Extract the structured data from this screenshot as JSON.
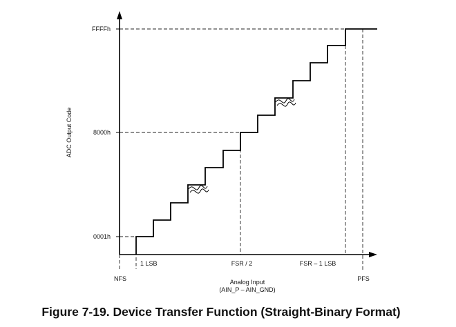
{
  "top_cut_text": "",
  "y_axis": {
    "title": "ADC Output Code",
    "ticks": [
      "FFFFh",
      "8000h",
      "0001h"
    ]
  },
  "x_axis": {
    "title_line1": "Analog Input",
    "title_line2": "(AIN_P – AIN_GND)",
    "labels": [
      "1 LSB",
      "FSR / 2",
      "FSR – 1 LSB"
    ],
    "end_labels": [
      "NFS",
      "PFS"
    ]
  },
  "caption": "Figure 7-19. Device Transfer Function (Straight-Binary Format)"
}
